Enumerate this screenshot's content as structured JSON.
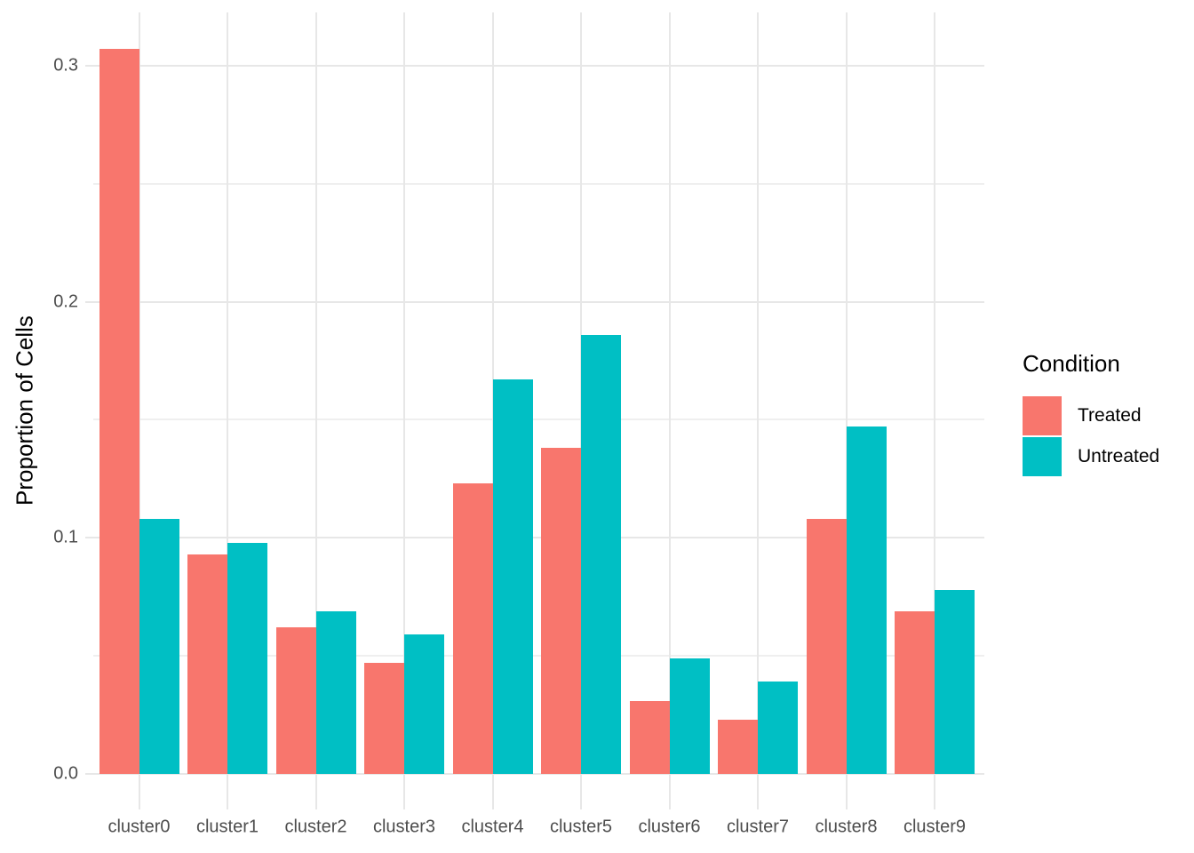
{
  "chart_data": {
    "type": "bar",
    "title": "",
    "xlabel": "",
    "ylabel": "Proportion of Cells",
    "legend_title": "Condition",
    "legend_position": "right",
    "grid": "on",
    "categories": [
      "cluster0",
      "cluster1",
      "cluster2",
      "cluster3",
      "cluster4",
      "cluster5",
      "cluster6",
      "cluster7",
      "cluster8",
      "cluster9"
    ],
    "series": [
      {
        "name": "Treated",
        "color": "#F8766D",
        "values": [
          0.307,
          0.093,
          0.062,
          0.047,
          0.123,
          0.138,
          0.031,
          0.023,
          0.108,
          0.069
        ]
      },
      {
        "name": "Untreated",
        "color": "#00BFC4",
        "values": [
          0.108,
          0.098,
          0.069,
          0.059,
          0.167,
          0.186,
          0.049,
          0.039,
          0.147,
          0.078
        ]
      }
    ],
    "ylim": [
      0,
      0.322
    ],
    "y_major_ticks": [
      {
        "value": 0.0,
        "label": "0.0"
      },
      {
        "value": 0.1,
        "label": "0.1"
      },
      {
        "value": 0.2,
        "label": "0.2"
      },
      {
        "value": 0.3,
        "label": "0.3"
      }
    ],
    "y_minor_gridlines": [
      0.05,
      0.15,
      0.25
    ]
  },
  "colors": {
    "background": "#FFFFFF",
    "grid_major": "#E7E7E7",
    "grid_minor": "#EFEFEF",
    "tick_label": "#4D4D4D",
    "axis_title": "#000000"
  }
}
